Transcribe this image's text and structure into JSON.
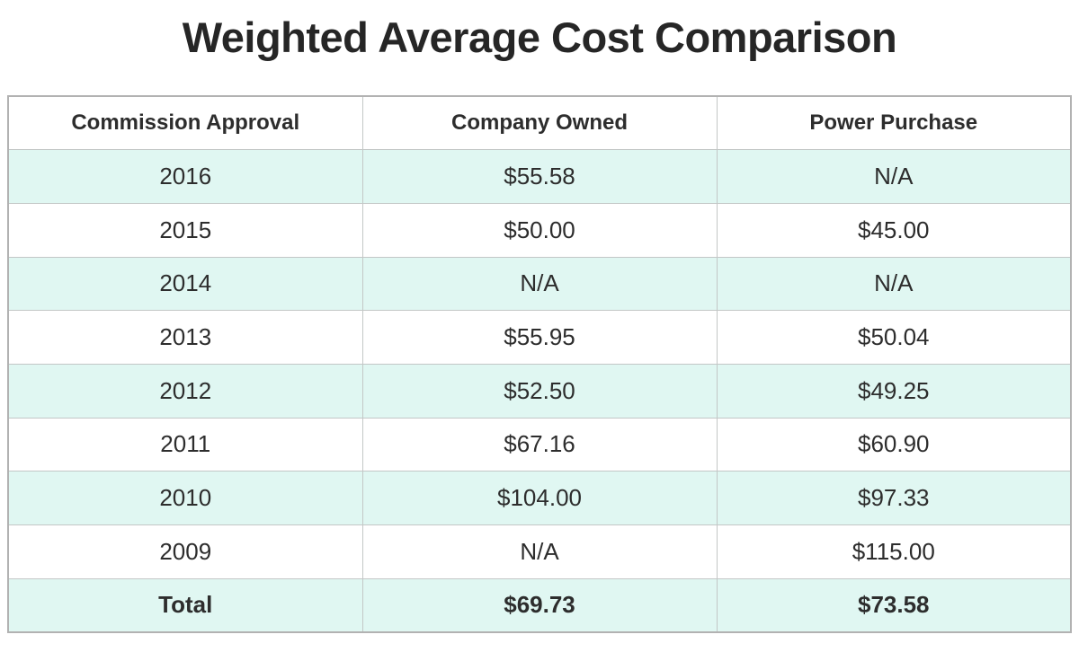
{
  "title": "Weighted Average Cost Comparison",
  "colors": {
    "row_alt_background": "#e0f7f2",
    "row_plain_background": "#ffffff",
    "border": "#c3c7c6",
    "text": "#2d2d2d"
  },
  "table": {
    "columns": [
      "Commission Approval",
      "Company Owned",
      "Power Purchase"
    ],
    "rows": [
      [
        "2016",
        "$55.58",
        "N/A"
      ],
      [
        "2015",
        "$50.00",
        "$45.00"
      ],
      [
        "2014",
        "N/A",
        "N/A"
      ],
      [
        "2013",
        "$55.95",
        "$50.04"
      ],
      [
        "2012",
        "$52.50",
        "$49.25"
      ],
      [
        "2011",
        "$67.16",
        "$60.90"
      ],
      [
        "2010",
        "$104.00",
        "$97.33"
      ],
      [
        "2009",
        "N/A",
        "$115.00"
      ]
    ],
    "total_row": [
      "Total",
      "$69.73",
      "$73.58"
    ]
  },
  "chart_data": {
    "type": "table",
    "title": "Weighted Average Cost Comparison",
    "columns": [
      "Commission Approval",
      "Company Owned",
      "Power Purchase"
    ],
    "rows": [
      {
        "commission_approval": "2016",
        "company_owned": 55.58,
        "power_purchase": null
      },
      {
        "commission_approval": "2015",
        "company_owned": 50.0,
        "power_purchase": 45.0
      },
      {
        "commission_approval": "2014",
        "company_owned": null,
        "power_purchase": null
      },
      {
        "commission_approval": "2013",
        "company_owned": 55.95,
        "power_purchase": 50.04
      },
      {
        "commission_approval": "2012",
        "company_owned": 52.5,
        "power_purchase": 49.25
      },
      {
        "commission_approval": "2011",
        "company_owned": 67.16,
        "power_purchase": 60.9
      },
      {
        "commission_approval": "2010",
        "company_owned": 104.0,
        "power_purchase": 97.33
      },
      {
        "commission_approval": "2009",
        "company_owned": null,
        "power_purchase": 115.0
      },
      {
        "commission_approval": "Total",
        "company_owned": 69.73,
        "power_purchase": 73.58
      }
    ],
    "na_display": "N/A",
    "currency": "USD"
  }
}
